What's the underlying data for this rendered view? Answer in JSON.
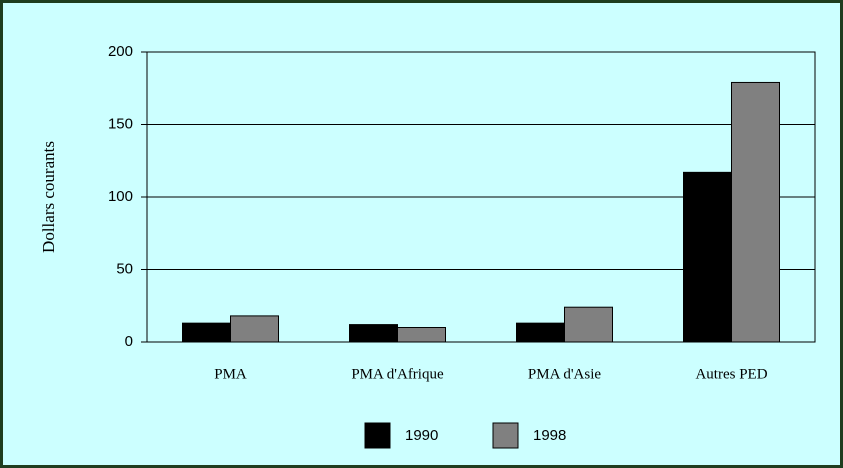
{
  "chart_data": {
    "type": "bar",
    "y_label": "Dollars courants",
    "categories": [
      "PMA",
      "PMA d'Afrique",
      "PMA d'Asie",
      "Autres PED"
    ],
    "series": [
      {
        "name": "1990",
        "color": "#000000",
        "values": [
          13,
          12,
          13,
          117
        ]
      },
      {
        "name": "1998",
        "color": "#808080",
        "values": [
          18,
          10,
          24,
          179
        ]
      }
    ],
    "ylim": [
      0,
      200
    ],
    "yticks": [
      0,
      50,
      100,
      150,
      200
    ],
    "grid": true,
    "legend": "bottom"
  }
}
